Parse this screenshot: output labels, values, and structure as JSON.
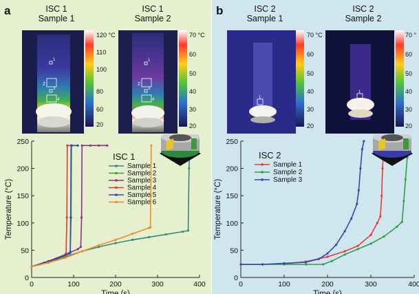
{
  "figure": {
    "panels": [
      {
        "letter": "a",
        "thermal_images": [
          {
            "title_line1": "ISC 1",
            "title_line2": "Sample 1",
            "colorbar_ticks": [
              "120 °C",
              "110",
              "100",
              "80",
              "60",
              "20"
            ],
            "point_labels": [
              "1",
              "2",
              "3",
              "4"
            ]
          },
          {
            "title_line1": "ISC 1",
            "title_line2": "Sample 2",
            "colorbar_ticks": [
              "70 °C",
              "60",
              "50",
              "40",
              "30",
              "20"
            ],
            "point_labels": [
              "1",
              "2",
              "3",
              "4"
            ]
          }
        ]
      },
      {
        "letter": "b",
        "thermal_images": [
          {
            "title_line1": "ISC 2",
            "title_line2": "Sample 1",
            "colorbar_ticks": [
              "70 °C",
              "60",
              "50",
              "40",
              "30",
              "20"
            ],
            "point_labels": [
              "1"
            ]
          },
          {
            "title_line1": "ISC 2",
            "title_line2": "Sample 2",
            "colorbar_ticks": [
              "70 °",
              "60",
              "50",
              "40",
              "30",
              "20"
            ],
            "point_labels": [
              "1"
            ]
          }
        ]
      }
    ]
  },
  "chart_data": [
    {
      "type": "line",
      "title": "ISC 1",
      "xlabel": "Time (s)",
      "ylabel": "Temperature (°C)",
      "xlim": [
        0,
        400
      ],
      "ylim": [
        0,
        250
      ],
      "xticks": [
        0,
        100,
        200,
        300,
        400
      ],
      "yticks": [
        0,
        50,
        100,
        150,
        200,
        250
      ],
      "legend_position": "top-right",
      "series": [
        {
          "name": "Sample 1",
          "color": "#2e8b7a",
          "x": [
            0,
            40,
            80,
            120,
            160,
            200,
            240,
            280,
            320,
            360,
            373,
            375,
            376
          ],
          "y": [
            20,
            29,
            38,
            48,
            56,
            63,
            69,
            74,
            79,
            84,
            86,
            200,
            242
          ]
        },
        {
          "name": "Sample 2",
          "color": "#3a9e3a",
          "x": [
            0,
            20,
            40,
            60,
            80,
            92,
            94,
            95,
            110
          ],
          "y": [
            20,
            24,
            29,
            34,
            40,
            45,
            110,
            242,
            242
          ]
        },
        {
          "name": "Sample 3",
          "color": "#8b2f86",
          "x": [
            0,
            40,
            80,
            110,
            117,
            119,
            120,
            140,
            160,
            180
          ],
          "y": [
            20,
            30,
            42,
            52,
            56,
            110,
            242,
            242,
            242,
            242
          ]
        },
        {
          "name": "Sample 4",
          "color": "#e53935",
          "x": [
            0,
            30,
            60,
            80,
            82,
            84,
            85,
            96
          ],
          "y": [
            20,
            27,
            35,
            41,
            44,
            110,
            242,
            242
          ]
        },
        {
          "name": "Sample 5",
          "color": "#3545b5",
          "x": [
            0,
            30,
            60,
            90,
            92,
            93,
            94,
            110
          ],
          "y": [
            20,
            27,
            35,
            44,
            47,
            110,
            242,
            242
          ]
        },
        {
          "name": "Sample 6",
          "color": "#f08a24",
          "x": [
            0,
            40,
            80,
            120,
            160,
            200,
            240,
            280,
            283,
            284,
            285
          ],
          "y": [
            20,
            27,
            36,
            48,
            59,
            69,
            80,
            91,
            92,
            150,
            242
          ]
        }
      ]
    },
    {
      "type": "line",
      "title": "ISC 2",
      "xlabel": "Time (s)",
      "ylabel": "Temperature (°C)",
      "xlim": [
        0,
        400
      ],
      "ylim": [
        0,
        250
      ],
      "xticks": [
        0,
        100,
        200,
        300,
        400
      ],
      "yticks": [
        0,
        50,
        100,
        150,
        200,
        250
      ],
      "legend_position": "top-left",
      "series": [
        {
          "name": "Sample 1",
          "color": "#e53935",
          "x": [
            0,
            50,
            100,
            150,
            200,
            240,
            270,
            300,
            315,
            322,
            325,
            327,
            329,
            332
          ],
          "y": [
            24,
            24,
            25,
            29,
            38,
            48,
            58,
            78,
            100,
            112,
            150,
            200,
            230,
            250
          ]
        },
        {
          "name": "Sample 2",
          "color": "#2e9e46",
          "x": [
            0,
            50,
            100,
            150,
            190,
            210,
            240,
            270,
            300,
            330,
            360,
            372,
            376,
            380,
            384,
            388
          ],
          "y": [
            24,
            24,
            24,
            24,
            24,
            30,
            42,
            52,
            62,
            75,
            93,
            102,
            140,
            180,
            220,
            250
          ]
        },
        {
          "name": "Sample 3",
          "color": "#3545b5",
          "x": [
            0,
            50,
            100,
            150,
            180,
            200,
            220,
            240,
            255,
            268,
            272,
            276,
            280,
            284
          ],
          "y": [
            24,
            24,
            26,
            28,
            34,
            44,
            60,
            85,
            108,
            135,
            160,
            200,
            235,
            250
          ]
        }
      ]
    }
  ]
}
